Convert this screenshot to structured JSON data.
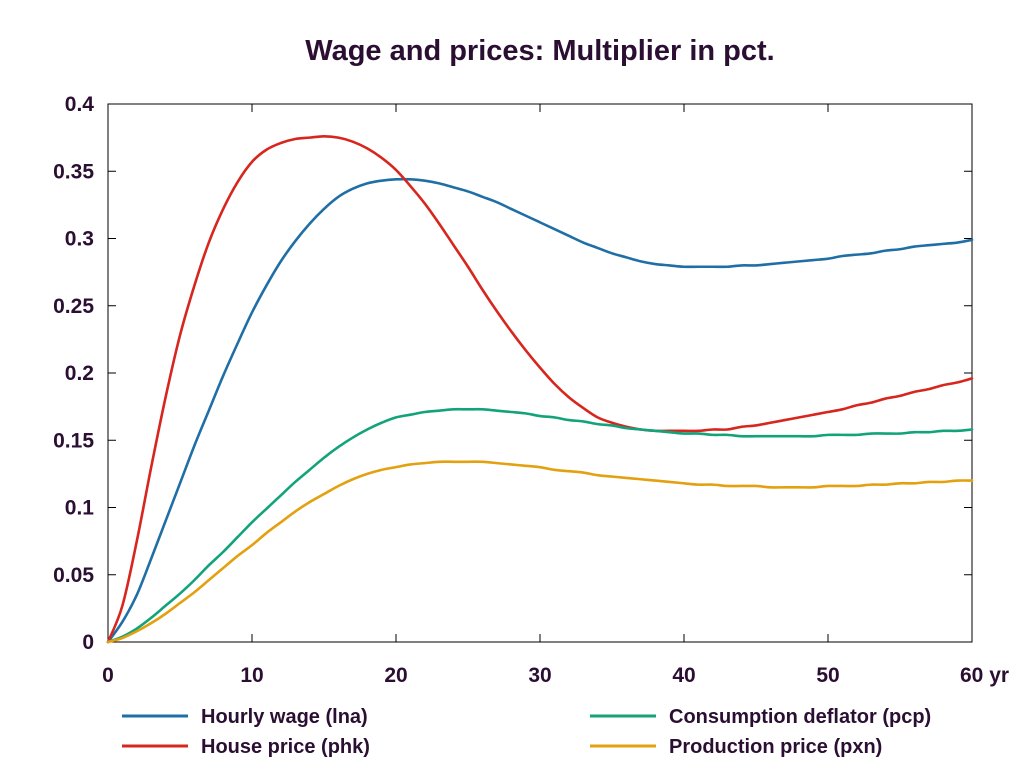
{
  "chart_data": {
    "type": "line",
    "title": "Wage and prices: Multiplier in pct.",
    "xlabel": "",
    "ylabel": "",
    "xlim": [
      0,
      60
    ],
    "ylim": [
      0,
      0.4
    ],
    "x_ticks": [
      0,
      10,
      20,
      30,
      40,
      50,
      60
    ],
    "x_tick_labels": [
      "0",
      "10",
      "20",
      "30",
      "40",
      "50",
      "60 yr"
    ],
    "y_ticks": [
      0,
      0.05,
      0.1,
      0.15,
      0.2,
      0.25,
      0.3,
      0.35,
      0.4
    ],
    "y_tick_labels": [
      "0",
      "0.05",
      "0.1",
      "0.15",
      "0.2",
      "0.25",
      "0.3",
      "0.35",
      "0.4"
    ],
    "grid": false,
    "legend_position": "bottom",
    "x": [
      0,
      1,
      2,
      3,
      4,
      5,
      6,
      7,
      8,
      9,
      10,
      11,
      12,
      13,
      14,
      15,
      16,
      17,
      18,
      19,
      20,
      21,
      22,
      23,
      24,
      25,
      26,
      27,
      28,
      29,
      30,
      31,
      32,
      33,
      34,
      35,
      36,
      37,
      38,
      39,
      40,
      41,
      42,
      43,
      44,
      45,
      46,
      47,
      48,
      49,
      50,
      51,
      52,
      53,
      54,
      55,
      56,
      57,
      58,
      59,
      60
    ],
    "series": [
      {
        "name": "Hourly wage (lna)",
        "color": "#1f6fa6",
        "values": [
          0,
          0.015,
          0.035,
          0.062,
          0.09,
          0.118,
          0.146,
          0.172,
          0.198,
          0.222,
          0.245,
          0.265,
          0.283,
          0.298,
          0.311,
          0.322,
          0.331,
          0.337,
          0.341,
          0.343,
          0.344,
          0.344,
          0.343,
          0.341,
          0.338,
          0.335,
          0.331,
          0.327,
          0.322,
          0.317,
          0.312,
          0.307,
          0.302,
          0.297,
          0.293,
          0.289,
          0.286,
          0.283,
          0.281,
          0.28,
          0.279,
          0.279,
          0.279,
          0.279,
          0.28,
          0.28,
          0.281,
          0.282,
          0.283,
          0.284,
          0.285,
          0.287,
          0.288,
          0.289,
          0.291,
          0.292,
          0.294,
          0.295,
          0.296,
          0.297,
          0.299
        ]
      },
      {
        "name": "House price (phk)",
        "color": "#d7261e",
        "values": [
          0,
          0.027,
          0.075,
          0.13,
          0.182,
          0.228,
          0.265,
          0.297,
          0.322,
          0.342,
          0.357,
          0.366,
          0.371,
          0.374,
          0.375,
          0.376,
          0.375,
          0.372,
          0.367,
          0.36,
          0.351,
          0.339,
          0.326,
          0.311,
          0.295,
          0.279,
          0.262,
          0.246,
          0.231,
          0.217,
          0.204,
          0.192,
          0.182,
          0.174,
          0.167,
          0.163,
          0.16,
          0.158,
          0.157,
          0.157,
          0.157,
          0.157,
          0.158,
          0.158,
          0.16,
          0.161,
          0.163,
          0.165,
          0.167,
          0.169,
          0.171,
          0.173,
          0.176,
          0.178,
          0.181,
          0.183,
          0.186,
          0.188,
          0.191,
          0.193,
          0.196
        ]
      },
      {
        "name": "Consumption deflator (pcp)",
        "color": "#12a37a",
        "values": [
          0,
          0.004,
          0.01,
          0.018,
          0.027,
          0.036,
          0.046,
          0.057,
          0.067,
          0.078,
          0.089,
          0.099,
          0.109,
          0.119,
          0.128,
          0.137,
          0.145,
          0.152,
          0.158,
          0.163,
          0.167,
          0.169,
          0.171,
          0.172,
          0.173,
          0.173,
          0.173,
          0.172,
          0.171,
          0.17,
          0.168,
          0.167,
          0.165,
          0.164,
          0.162,
          0.161,
          0.159,
          0.158,
          0.157,
          0.156,
          0.155,
          0.155,
          0.154,
          0.154,
          0.153,
          0.153,
          0.153,
          0.153,
          0.153,
          0.153,
          0.154,
          0.154,
          0.154,
          0.155,
          0.155,
          0.155,
          0.156,
          0.156,
          0.157,
          0.157,
          0.158
        ]
      },
      {
        "name": "Production price (pxn)",
        "color": "#e3a10f",
        "values": [
          0,
          0.003,
          0.008,
          0.014,
          0.021,
          0.029,
          0.037,
          0.046,
          0.055,
          0.064,
          0.072,
          0.081,
          0.089,
          0.097,
          0.104,
          0.11,
          0.116,
          0.121,
          0.125,
          0.128,
          0.13,
          0.132,
          0.133,
          0.134,
          0.134,
          0.134,
          0.134,
          0.133,
          0.132,
          0.131,
          0.13,
          0.128,
          0.127,
          0.126,
          0.124,
          0.123,
          0.122,
          0.121,
          0.12,
          0.119,
          0.118,
          0.117,
          0.117,
          0.116,
          0.116,
          0.116,
          0.115,
          0.115,
          0.115,
          0.115,
          0.116,
          0.116,
          0.116,
          0.117,
          0.117,
          0.118,
          0.118,
          0.119,
          0.119,
          0.12,
          0.12
        ]
      }
    ]
  }
}
